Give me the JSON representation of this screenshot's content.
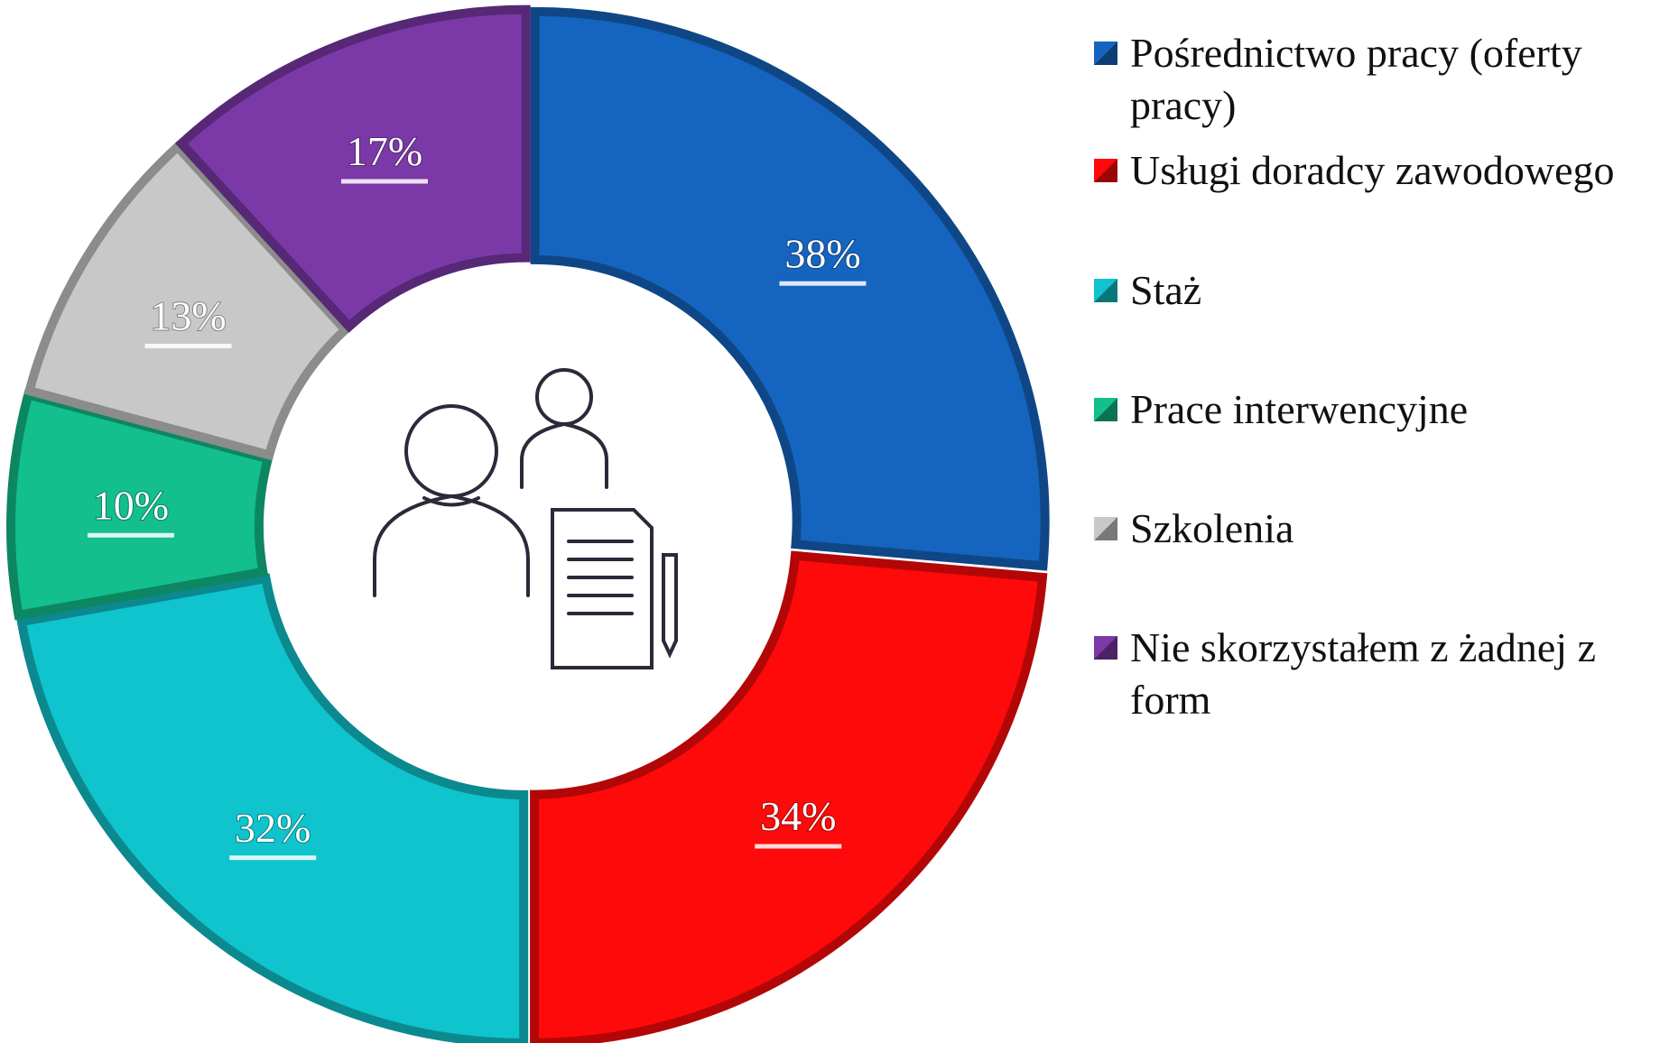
{
  "chart_data": {
    "type": "donut",
    "categories": [
      "Pośrednictwo pracy (oferty pracy)",
      "Usługi doradcy zawodowego",
      "Staż",
      "Prace interwencyjne",
      "Szkolenia",
      "Nie skorzystałem z żadnej z form"
    ],
    "values": [
      38,
      34,
      32,
      10,
      13,
      17
    ],
    "value_labels": [
      "38%",
      "34%",
      "32%",
      "10%",
      "13%",
      "17%"
    ],
    "colors": [
      "#1565c0",
      "#ff0a0a",
      "#0fc4cc",
      "#13bf8c",
      "#c8c8c8",
      "#7b39a8"
    ],
    "legend": "right"
  }
}
